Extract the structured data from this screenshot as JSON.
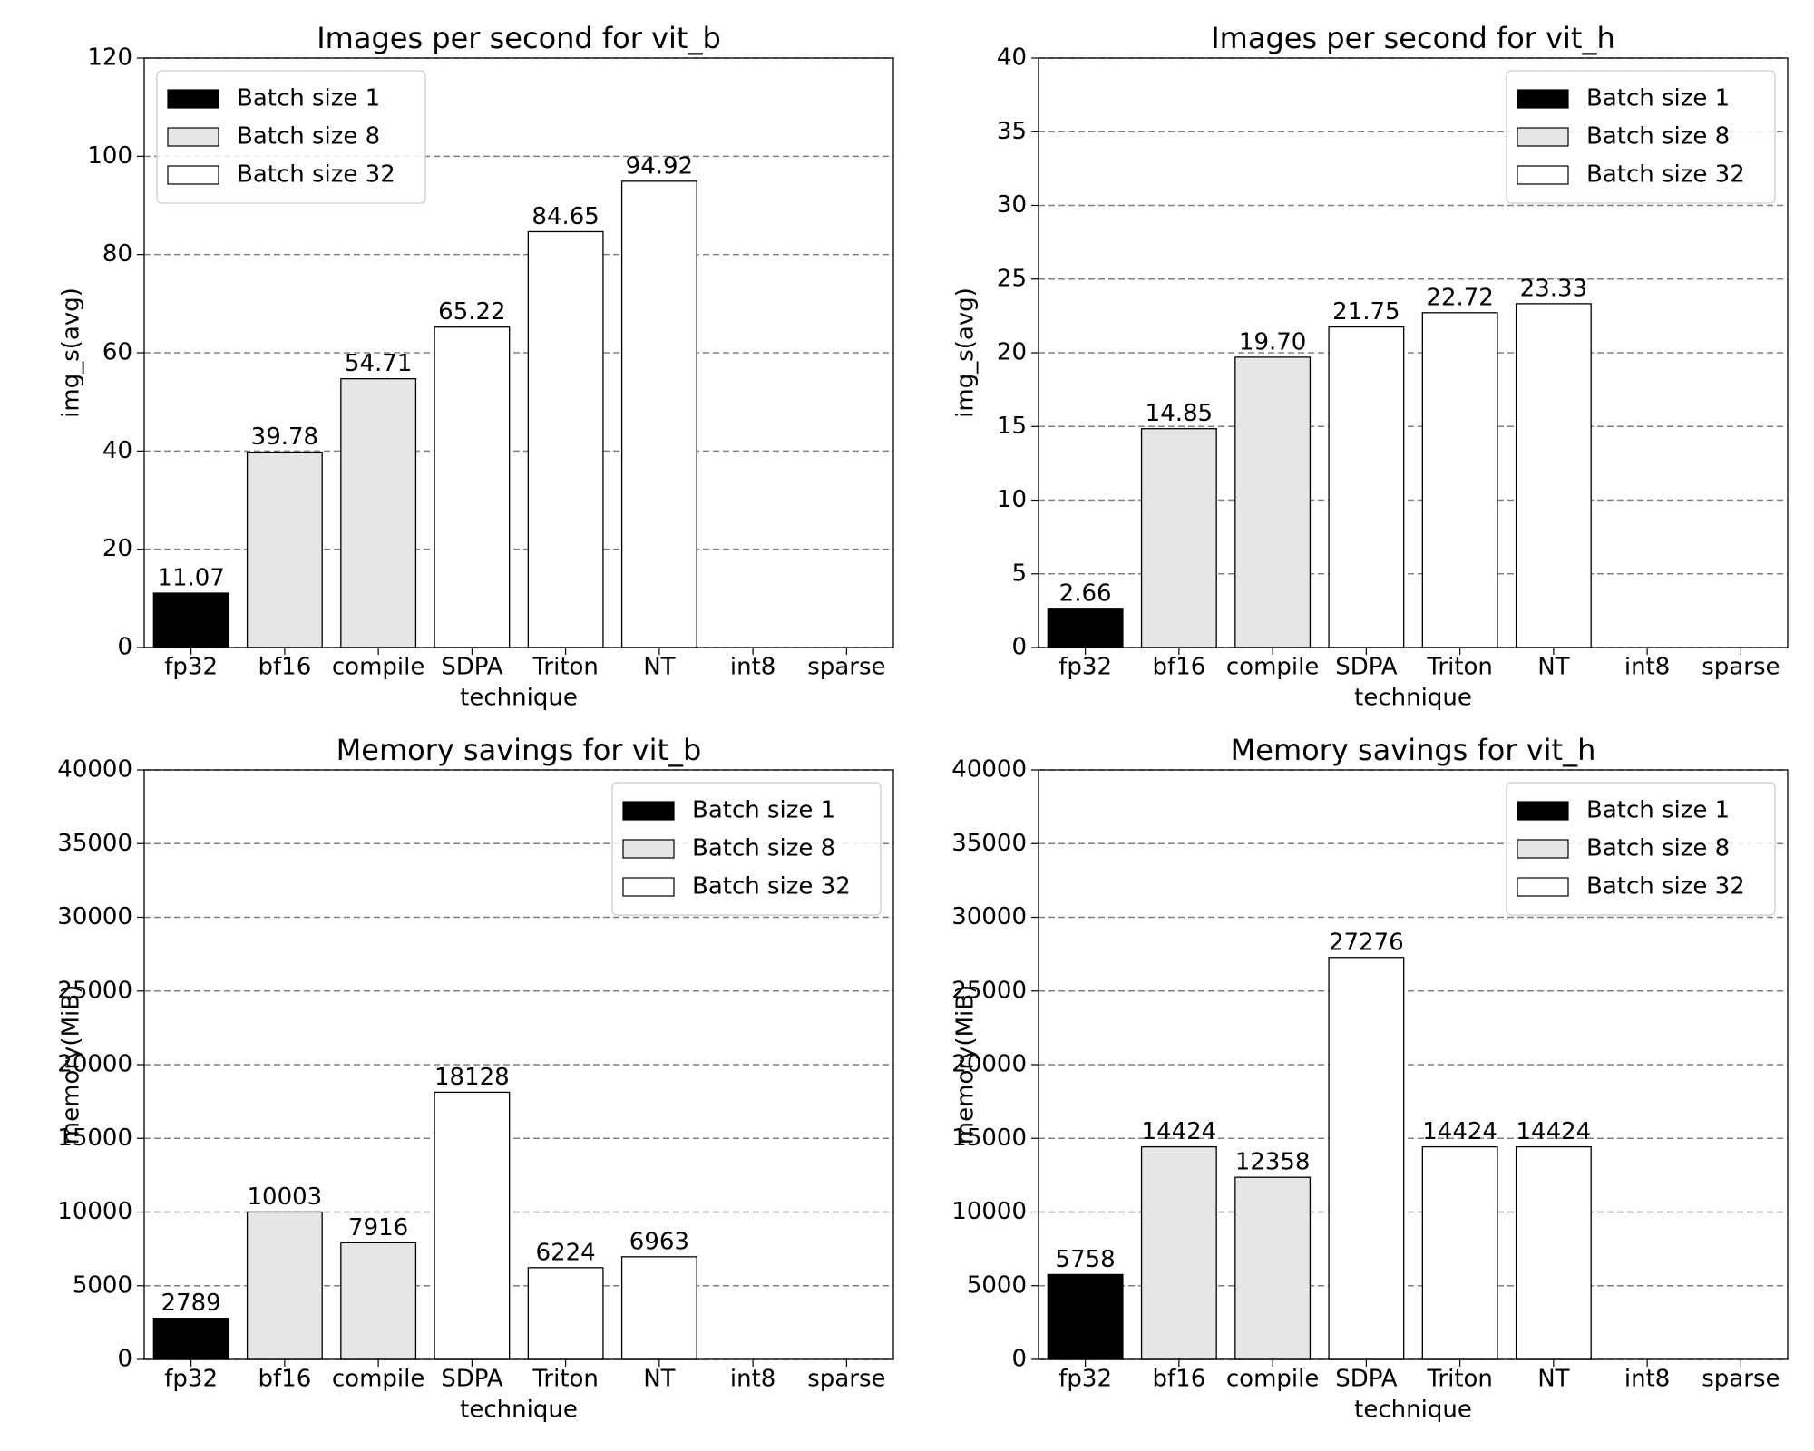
{
  "chart_data": [
    {
      "type": "bar",
      "title": "Images per second for vit_b",
      "xlabel": "technique",
      "ylabel": "img_s(avg)",
      "categories": [
        "fp32",
        "bf16",
        "compile",
        "SDPA",
        "Triton",
        "NT",
        "int8",
        "sparse"
      ],
      "series": [
        {
          "name": "Batch size 1",
          "color": "#000000",
          "values": [
            11.07,
            null,
            null,
            null,
            null,
            null,
            null,
            null
          ],
          "value_labels": [
            "11.07",
            null,
            null,
            null,
            null,
            null,
            null,
            null
          ]
        },
        {
          "name": "Batch size 8",
          "color": "#e6e6e6",
          "values": [
            null,
            39.78,
            54.71,
            null,
            null,
            null,
            null,
            null
          ],
          "value_labels": [
            null,
            "39.78",
            "54.71",
            null,
            null,
            null,
            null,
            null
          ]
        },
        {
          "name": "Batch size 32",
          "color": "#ffffff",
          "values": [
            null,
            null,
            null,
            65.22,
            84.65,
            94.92,
            null,
            null
          ],
          "value_labels": [
            null,
            null,
            null,
            "65.22",
            "84.65",
            "94.92",
            null,
            null
          ]
        }
      ],
      "ylim": [
        0,
        120
      ],
      "yticks": [
        0,
        20,
        40,
        60,
        80,
        100,
        120
      ],
      "grid": true,
      "legend": "upper left"
    },
    {
      "type": "bar",
      "title": "Images per second for vit_h",
      "xlabel": "technique",
      "ylabel": "img_s(avg)",
      "categories": [
        "fp32",
        "bf16",
        "compile",
        "SDPA",
        "Triton",
        "NT",
        "int8",
        "sparse"
      ],
      "series": [
        {
          "name": "Batch size 1",
          "color": "#000000",
          "values": [
            2.66,
            null,
            null,
            null,
            null,
            null,
            null,
            null
          ],
          "value_labels": [
            "2.66",
            null,
            null,
            null,
            null,
            null,
            null,
            null
          ]
        },
        {
          "name": "Batch size 8",
          "color": "#e6e6e6",
          "values": [
            null,
            14.85,
            19.7,
            null,
            null,
            null,
            null,
            null
          ],
          "value_labels": [
            null,
            "14.85",
            "19.70",
            null,
            null,
            null,
            null,
            null
          ]
        },
        {
          "name": "Batch size 32",
          "color": "#ffffff",
          "values": [
            null,
            null,
            null,
            21.75,
            22.72,
            23.33,
            null,
            null
          ],
          "value_labels": [
            null,
            null,
            null,
            "21.75",
            "22.72",
            "23.33",
            null,
            null
          ]
        }
      ],
      "ylim": [
        0,
        40
      ],
      "yticks": [
        0,
        5,
        10,
        15,
        20,
        25,
        30,
        35,
        40
      ],
      "grid": true,
      "legend": "upper right"
    },
    {
      "type": "bar",
      "title": "Memory savings for vit_b",
      "xlabel": "technique",
      "ylabel": "memory(MiB)",
      "categories": [
        "fp32",
        "bf16",
        "compile",
        "SDPA",
        "Triton",
        "NT",
        "int8",
        "sparse"
      ],
      "series": [
        {
          "name": "Batch size 1",
          "color": "#000000",
          "values": [
            2789,
            null,
            null,
            null,
            null,
            null,
            null,
            null
          ]
        },
        {
          "name": "Batch size 8",
          "color": "#e6e6e6",
          "values": [
            null,
            10003,
            7916,
            null,
            null,
            null,
            null,
            null
          ]
        },
        {
          "name": "Batch size 32",
          "color": "#ffffff",
          "values": [
            null,
            null,
            null,
            18128,
            6224,
            6963,
            null,
            null
          ]
        }
      ],
      "ylim": [
        0,
        40000
      ],
      "yticks": [
        0,
        5000,
        10000,
        15000,
        20000,
        25000,
        30000,
        35000,
        40000
      ],
      "grid": true,
      "legend": "upper right"
    },
    {
      "type": "bar",
      "title": "Memory savings for vit_h",
      "xlabel": "technique",
      "ylabel": "memory(MiB)",
      "categories": [
        "fp32",
        "bf16",
        "compile",
        "SDPA",
        "Triton",
        "NT",
        "int8",
        "sparse"
      ],
      "series": [
        {
          "name": "Batch size 1",
          "color": "#000000",
          "values": [
            5758,
            null,
            null,
            null,
            null,
            null,
            null,
            null
          ]
        },
        {
          "name": "Batch size 8",
          "color": "#e6e6e6",
          "values": [
            null,
            14424,
            12358,
            null,
            null,
            null,
            null,
            null
          ]
        },
        {
          "name": "Batch size 32",
          "color": "#ffffff",
          "values": [
            null,
            null,
            null,
            27276,
            14424,
            14424,
            null,
            null
          ]
        }
      ],
      "ylim": [
        0,
        40000
      ],
      "yticks": [
        0,
        5000,
        10000,
        15000,
        20000,
        25000,
        30000,
        35000,
        40000
      ],
      "grid": true,
      "legend": "upper right"
    }
  ]
}
